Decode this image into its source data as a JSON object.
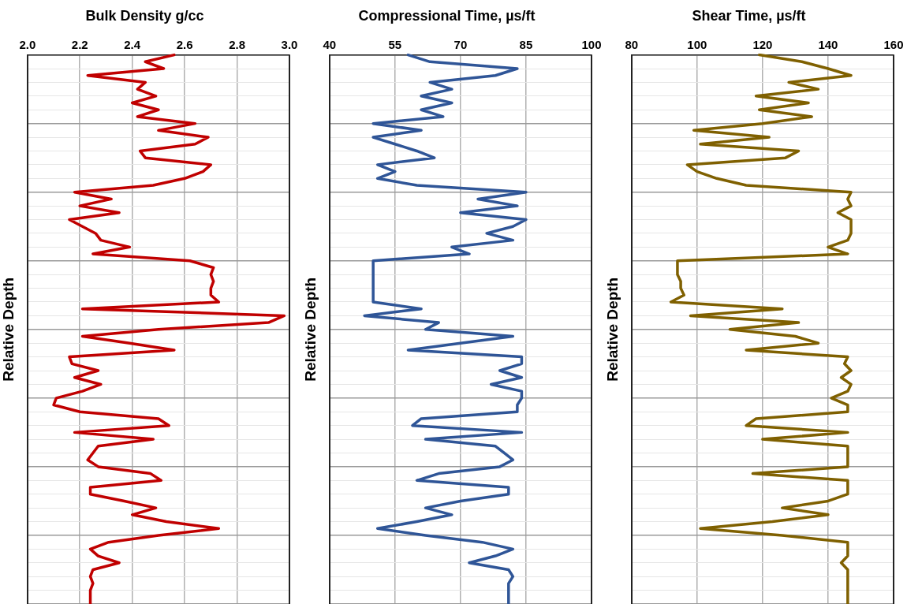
{
  "chart_data": [
    {
      "type": "line",
      "title": "Bulk Density g/cc",
      "ylabel": "Relative Depth",
      "orientation": "horizontal",
      "grid": true,
      "tick_labels": "x",
      "xlim": [
        2.0,
        3.0
      ],
      "xticks": [
        {
          "value": 2.0,
          "label": "2.0"
        },
        {
          "value": 2.2,
          "label": "2.2"
        },
        {
          "value": 2.4,
          "label": "2.4"
        },
        {
          "value": 2.6,
          "label": "2.6"
        },
        {
          "value": 2.8,
          "label": "2.8"
        },
        {
          "value": 3.0,
          "label": "3.0"
        }
      ],
      "categories": [
        null,
        null,
        null,
        null,
        null,
        null,
        null,
        null,
        null,
        null,
        null,
        null,
        null,
        null,
        null,
        null,
        null,
        null,
        null,
        null,
        null,
        null,
        null,
        null,
        null,
        null,
        null,
        null,
        null,
        null,
        null,
        null,
        null,
        null,
        null,
        null,
        null,
        null,
        null,
        null,
        null,
        null,
        null,
        null,
        null,
        null,
        null,
        null,
        null,
        null,
        null,
        null,
        null,
        null,
        null,
        null,
        null,
        null,
        null,
        null,
        null,
        null,
        null,
        null,
        null,
        null,
        null,
        null,
        null,
        null,
        null,
        null,
        null,
        null,
        null,
        null,
        null,
        null,
        null,
        null,
        null
      ],
      "series": [
        {
          "color": "#c00000",
          "values": [
            2.56,
            2.45,
            2.52,
            2.23,
            2.45,
            2.42,
            2.49,
            2.4,
            2.5,
            2.42,
            2.64,
            2.5,
            2.69,
            2.64,
            2.43,
            2.45,
            2.7,
            2.67,
            2.6,
            2.48,
            2.18,
            2.32,
            2.2,
            2.35,
            2.16,
            2.21,
            2.26,
            2.28,
            2.39,
            2.25,
            2.62,
            2.71,
            2.7,
            2.71,
            2.7,
            2.7,
            2.73,
            2.21,
            2.98,
            2.92,
            2.5,
            2.21,
            2.39,
            2.56,
            2.16,
            2.17,
            2.27,
            2.18,
            2.28,
            2.21,
            2.11,
            2.1,
            2.2,
            2.5,
            2.54,
            2.18,
            2.48,
            2.27,
            2.25,
            2.23,
            2.27,
            2.47,
            2.51,
            2.24,
            2.24,
            2.37,
            2.49,
            2.4,
            2.53,
            2.73,
            2.5,
            2.31,
            2.24,
            2.27,
            2.35,
            2.25,
            2.24,
            2.25,
            2.24,
            2.24,
            2.24
          ]
        }
      ]
    },
    {
      "type": "line",
      "title": "Compressional Time, µs/ft",
      "ylabel": "Relative Depth",
      "orientation": "horizontal",
      "grid": true,
      "tick_labels": "x",
      "xlim": [
        40,
        100
      ],
      "xticks": [
        40,
        55,
        70,
        85,
        100
      ],
      "categories": [
        null,
        null,
        null,
        null,
        null,
        null,
        null,
        null,
        null,
        null,
        null,
        null,
        null,
        null,
        null,
        null,
        null,
        null,
        null,
        null,
        null,
        null,
        null,
        null,
        null,
        null,
        null,
        null,
        null,
        null,
        null,
        null,
        null,
        null,
        null,
        null,
        null,
        null,
        null,
        null,
        null,
        null,
        null,
        null,
        null,
        null,
        null,
        null,
        null,
        null,
        null,
        null,
        null,
        null,
        null,
        null,
        null,
        null,
        null,
        null,
        null,
        null,
        null,
        null,
        null,
        null,
        null,
        null,
        null,
        null,
        null,
        null,
        null,
        null,
        null,
        null,
        null,
        null,
        null,
        null,
        null
      ],
      "series": [
        {
          "color": "#2f5597",
          "values": [
            58,
            63,
            83,
            78,
            63,
            68,
            61,
            68,
            61,
            66,
            50,
            61,
            50,
            55,
            60,
            64,
            51,
            55,
            51,
            60,
            85,
            74,
            83,
            70,
            85,
            82,
            76,
            82,
            68,
            72,
            50,
            50,
            50,
            50,
            50,
            50,
            50,
            61,
            48,
            65,
            62,
            82,
            70,
            58,
            84,
            84,
            79,
            84,
            77,
            84,
            84,
            83,
            83,
            61,
            59,
            84,
            62,
            78,
            80,
            82,
            79,
            65,
            60,
            81,
            81,
            70,
            62,
            68,
            60,
            51,
            62,
            75,
            82,
            78,
            72,
            81,
            82,
            81,
            81,
            81,
            81
          ]
        }
      ]
    },
    {
      "type": "line",
      "title": "Shear Time, µs/ft",
      "ylabel": "Relative Depth",
      "orientation": "horizontal",
      "grid": true,
      "tick_labels": "x",
      "xlim": [
        80,
        160
      ],
      "xticks": [
        80,
        100,
        120,
        140,
        160
      ],
      "categories": [
        null,
        null,
        null,
        null,
        null,
        null,
        null,
        null,
        null,
        null,
        null,
        null,
        null,
        null,
        null,
        null,
        null,
        null,
        null,
        null,
        null,
        null,
        null,
        null,
        null,
        null,
        null,
        null,
        null,
        null,
        null,
        null,
        null,
        null,
        null,
        null,
        null,
        null,
        null,
        null,
        null,
        null,
        null,
        null,
        null,
        null,
        null,
        null,
        null,
        null,
        null,
        null,
        null,
        null,
        null,
        null,
        null,
        null,
        null,
        null,
        null,
        null,
        null,
        null,
        null,
        null,
        null,
        null,
        null,
        null,
        null,
        null,
        null,
        null,
        null,
        null,
        null,
        null,
        null,
        null,
        null
      ],
      "series": [
        {
          "color": "#7f6000",
          "values": [
            119,
            132,
            140,
            147,
            128,
            137,
            118,
            134,
            119,
            135,
            120,
            99,
            122,
            101,
            131,
            127,
            97,
            100,
            106,
            115,
            147,
            146,
            147,
            143,
            147,
            147,
            147,
            146,
            140,
            146,
            94,
            94,
            94,
            95,
            95,
            96,
            92,
            126,
            98,
            131,
            110,
            130,
            137,
            115,
            146,
            145,
            147,
            144,
            147,
            146,
            141,
            146,
            146,
            118,
            115,
            146,
            120,
            146,
            146,
            146,
            146,
            117,
            146,
            146,
            146,
            140,
            126,
            140,
            123,
            101,
            126,
            146,
            146,
            146,
            144,
            146,
            146,
            146,
            146,
            146,
            146
          ]
        }
      ]
    }
  ]
}
